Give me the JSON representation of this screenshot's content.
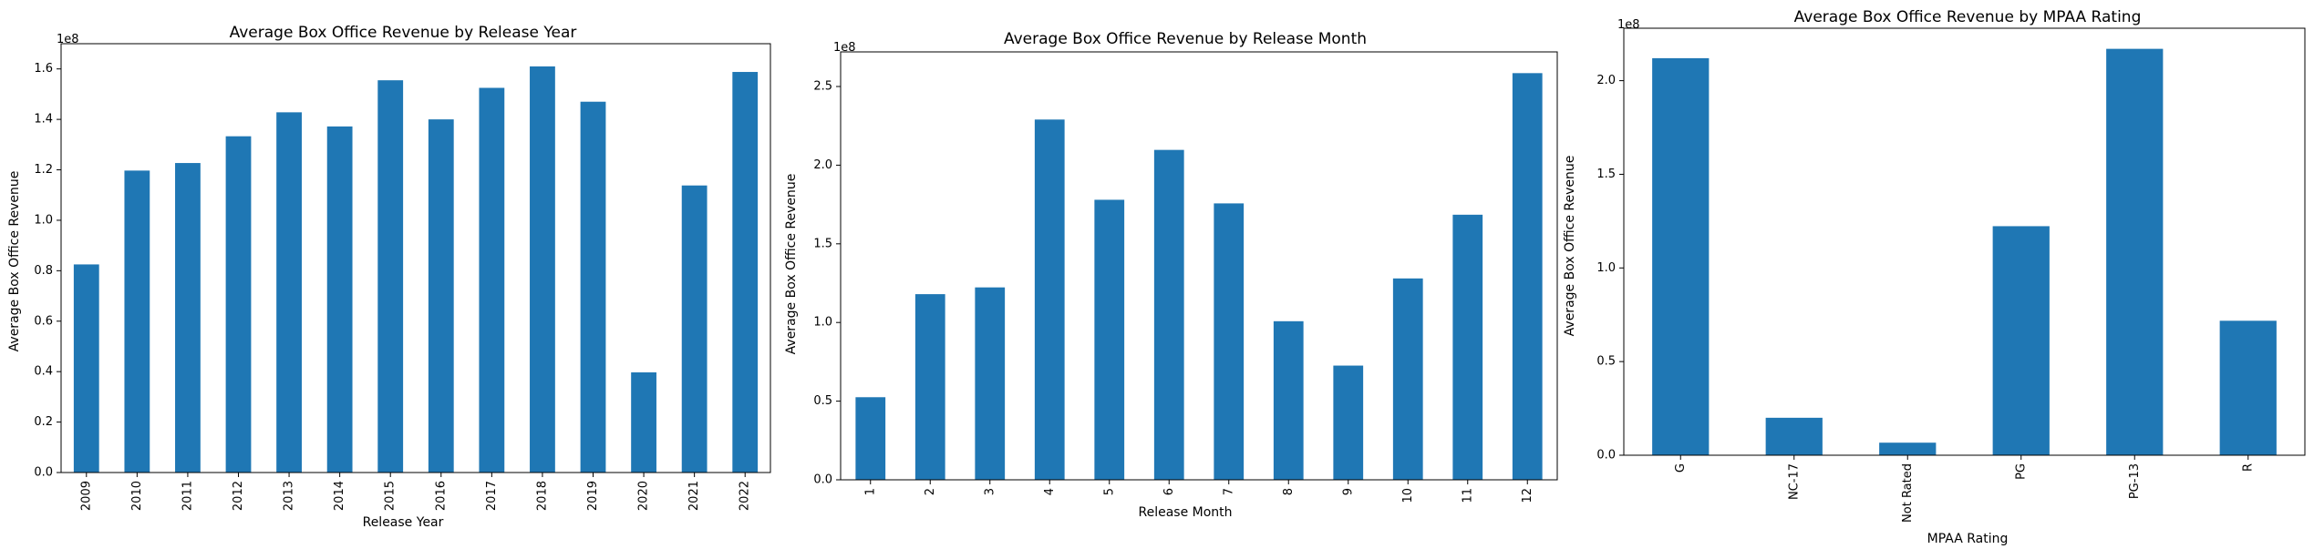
{
  "colors": {
    "bar": "#1f77b4",
    "axis": "#000000",
    "background": "#ffffff"
  },
  "chart_data": [
    {
      "type": "bar",
      "title": "Average Box Office Revenue by Release Year",
      "xlabel": "Release Year",
      "ylabel": "Average Box Office Revenue",
      "multiplier_label": "1e8",
      "ylim": [
        0,
        1.7
      ],
      "yticks": [
        0.0,
        0.2,
        0.4,
        0.6,
        0.8,
        1.0,
        1.2,
        1.4,
        1.6
      ],
      "ytick_labels": [
        "0.0",
        "0.2",
        "0.4",
        "0.6",
        "0.8",
        "1.0",
        "1.2",
        "1.4",
        "1.6"
      ],
      "categories": [
        "2009",
        "2010",
        "2011",
        "2012",
        "2013",
        "2014",
        "2015",
        "2016",
        "2017",
        "2018",
        "2019",
        "2020",
        "2021",
        "2022"
      ],
      "values": [
        0.825,
        1.197,
        1.227,
        1.333,
        1.428,
        1.372,
        1.555,
        1.4,
        1.525,
        1.61,
        1.47,
        0.397,
        1.138,
        1.588
      ],
      "grid": false
    },
    {
      "type": "bar",
      "title": "Average Box Office Revenue by Release Month",
      "xlabel": "Release Month",
      "ylabel": "Average Box Office Revenue",
      "multiplier_label": "1e8",
      "ylim": [
        0,
        2.72
      ],
      "yticks": [
        0.0,
        0.5,
        1.0,
        1.5,
        2.0,
        2.5
      ],
      "ytick_labels": [
        "0.0",
        "0.5",
        "1.0",
        "1.5",
        "2.0",
        "2.5"
      ],
      "categories": [
        "1",
        "2",
        "3",
        "4",
        "5",
        "6",
        "7",
        "8",
        "9",
        "10",
        "11",
        "12"
      ],
      "values": [
        0.525,
        1.18,
        1.223,
        2.29,
        1.78,
        2.097,
        1.757,
        1.008,
        0.726,
        1.28,
        1.685,
        2.585
      ],
      "grid": false
    },
    {
      "type": "bar",
      "title": "Average Box Office Revenue by MPAA Rating",
      "xlabel": "MPAA Rating",
      "ylabel": "Average Box Office Revenue",
      "multiplier_label": "1e8",
      "ylim": [
        0,
        2.28
      ],
      "yticks": [
        0.0,
        0.5,
        1.0,
        1.5,
        2.0
      ],
      "ytick_labels": [
        "0.0",
        "0.5",
        "1.0",
        "1.5",
        "2.0"
      ],
      "categories": [
        "G",
        "NC-17",
        "Not Rated",
        "PG",
        "PG-13",
        "R"
      ],
      "values": [
        2.12,
        0.2,
        0.067,
        1.223,
        2.17,
        0.718
      ],
      "grid": false
    }
  ]
}
